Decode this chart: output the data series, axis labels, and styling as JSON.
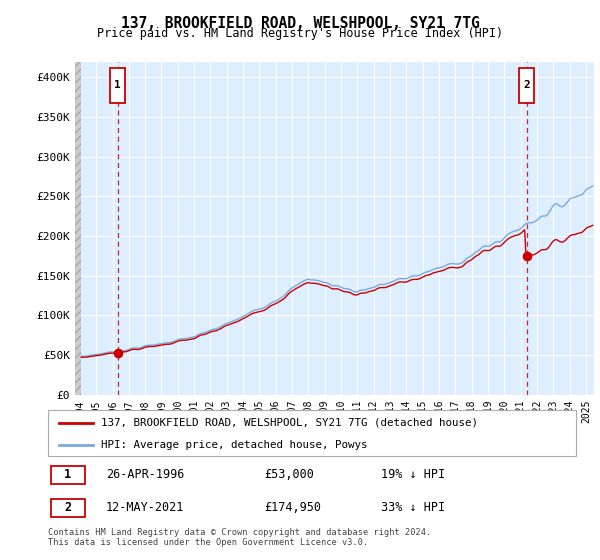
{
  "title": "137, BROOKFIELD ROAD, WELSHPOOL, SY21 7TG",
  "subtitle": "Price paid vs. HM Land Registry's House Price Index (HPI)",
  "legend_line1": "137, BROOKFIELD ROAD, WELSHPOOL, SY21 7TG (detached house)",
  "legend_line2": "HPI: Average price, detached house, Powys",
  "annotation1": {
    "num": "1",
    "date": "26-APR-1996",
    "price": "£53,000",
    "note": "19% ↓ HPI"
  },
  "annotation2": {
    "num": "2",
    "date": "12-MAY-2021",
    "price": "£174,950",
    "note": "33% ↓ HPI"
  },
  "copyright": "Contains HM Land Registry data © Crown copyright and database right 2024.\nThis data is licensed under the Open Government Licence v3.0.",
  "ylim": [
    0,
    420000
  ],
  "yticks": [
    0,
    50000,
    100000,
    150000,
    200000,
    250000,
    300000,
    350000,
    400000
  ],
  "ytick_labels": [
    "£0",
    "£50K",
    "£100K",
    "£150K",
    "£200K",
    "£250K",
    "£300K",
    "£350K",
    "£400K"
  ],
  "sale1_year": 1996.32,
  "sale1_price": 53000,
  "sale2_year": 2021.37,
  "sale2_price": 174950,
  "hpi_color": "#7aaadd",
  "price_color": "#cc0000",
  "dashed_line_color": "#cc0000",
  "marker_color": "#cc0000",
  "bg_plot": "#ddeeff",
  "grid_color": "#ffffff"
}
